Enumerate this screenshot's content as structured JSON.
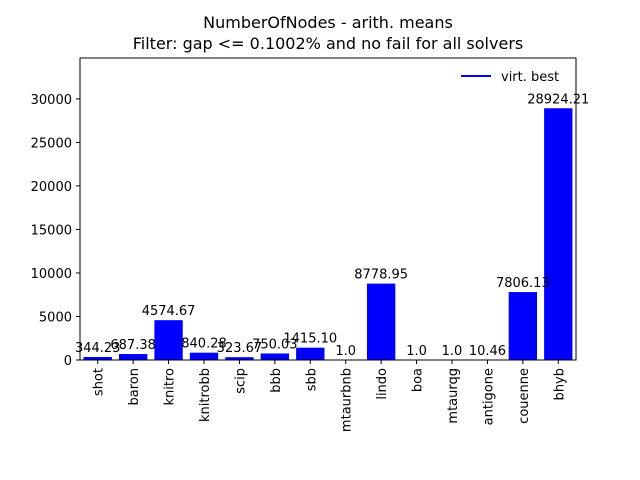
{
  "chart_data": {
    "type": "bar",
    "title": "NumberOfNodes - arith. means",
    "subtitle": "Filter: gap <= 0.1002% and no fail for all solvers",
    "xlabel": "",
    "ylabel": "",
    "categories": [
      "shot",
      "baron",
      "knitro",
      "knitrobb",
      "scip",
      "bbb",
      "sbb",
      "mtaurbnb",
      "lindo",
      "boa",
      "mtaurqg",
      "antigone",
      "couenne",
      "bhyb"
    ],
    "values": [
      344.23,
      687.38,
      4574.67,
      840.28,
      323.67,
      750.03,
      1415.1,
      1.0,
      8778.95,
      1.0,
      1.0,
      10.46,
      7806.13,
      28924.21
    ],
    "value_labels": [
      "344.23",
      "687.38",
      "4574.67",
      "840.28",
      "323.67",
      "750.03",
      "1415.10",
      "1.0",
      "8778.95",
      "1.0",
      "1.0",
      "10.46",
      "7806.13",
      "28924.21"
    ],
    "ylim": [
      0,
      34700
    ],
    "yticks": [
      0,
      5000,
      10000,
      15000,
      20000,
      25000,
      30000
    ],
    "ytick_labels": [
      "0",
      "5000",
      "10000",
      "15000",
      "20000",
      "25000",
      "30000"
    ],
    "bar_color": "#0000ff",
    "legend": {
      "label": "virt. best",
      "color": "#0000ff",
      "placement": "upper right"
    },
    "grid": false
  }
}
